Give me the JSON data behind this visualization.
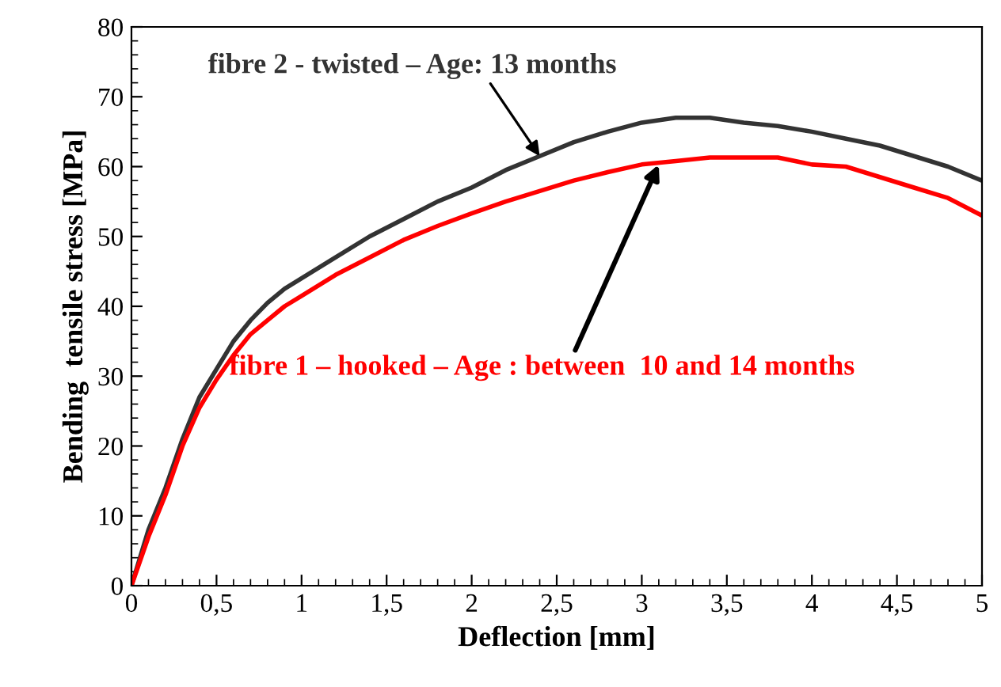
{
  "chart_data": {
    "type": "line",
    "xlabel": "Deflection [mm]",
    "ylabel": "Bending  tensile stress [MPa]",
    "xlim": [
      0,
      5
    ],
    "ylim": [
      0,
      80
    ],
    "xticks": [
      0,
      {
        "value": 0.5,
        "label": "0,5"
      },
      1,
      {
        "value": 1.5,
        "label": "1,5"
      },
      2,
      {
        "value": 2.5,
        "label": "2,5"
      },
      3,
      {
        "value": 3.5,
        "label": "3,5"
      },
      4,
      {
        "value": 4.5,
        "label": "4,5"
      },
      5
    ],
    "yticks": [
      0,
      10,
      20,
      30,
      40,
      50,
      60,
      70,
      80
    ],
    "grid": false,
    "legend": false,
    "marker": "none",
    "line_style": "solid",
    "x": [
      0,
      0.1,
      0.2,
      0.3,
      0.4,
      0.5,
      0.6,
      0.7,
      0.8,
      0.9,
      1,
      1.2,
      1.4,
      1.6,
      1.8,
      2,
      2.2,
      2.4,
      2.6,
      2.8,
      3,
      3.2,
      3.4,
      3.6,
      3.8,
      4,
      4.2,
      4.4,
      4.6,
      4.8,
      5
    ],
    "series": [
      {
        "name": "fibre 2 - twisted – Age: 13 months",
        "color": "#333333",
        "values": [
          0,
          8,
          14,
          21,
          27,
          31,
          35,
          38,
          40.5,
          42.5,
          44,
          47,
          50,
          52.5,
          55,
          57,
          59.5,
          61.5,
          63.5,
          65,
          66.3,
          67,
          67,
          66.3,
          65.8,
          65,
          64,
          63,
          61.5,
          60,
          58
        ]
      },
      {
        "name": "fibre 1 – hooked – Age : between  10 and 14 months",
        "color": "#ff0000",
        "values": [
          0,
          7,
          13,
          20,
          25.5,
          29.5,
          33,
          36,
          38,
          40,
          41.5,
          44.5,
          47,
          49.5,
          51.5,
          53.3,
          55,
          56.5,
          58,
          59.2,
          60.3,
          60.8,
          61.3,
          61.3,
          61.3,
          60.3,
          60,
          58.5,
          57,
          55.5,
          53
        ]
      }
    ]
  }
}
